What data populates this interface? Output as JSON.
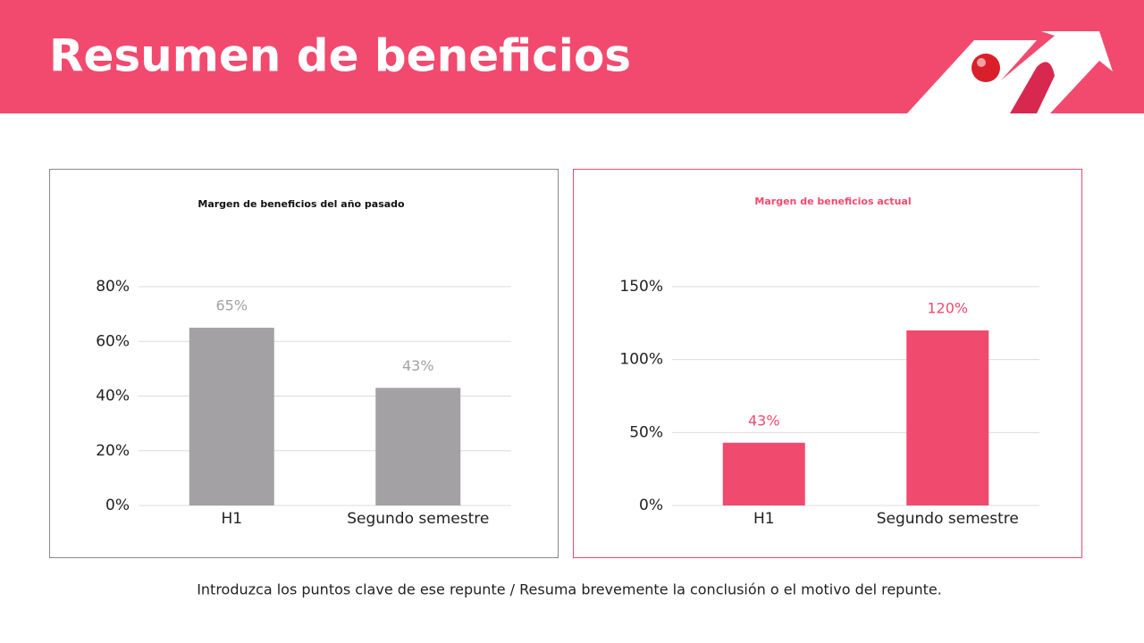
{
  "header": {
    "title": "Resumen de beneficios"
  },
  "chart_data": [
    {
      "type": "bar",
      "title": "Margen de beneficios del año pasado",
      "categories": [
        "H1",
        "Segundo semestre"
      ],
      "values": [
        65,
        43
      ],
      "value_labels": [
        "65%",
        "43%"
      ],
      "color": "#a3a1a4",
      "ylim": [
        0,
        80
      ],
      "yticks": [
        {
          "value": 0,
          "label": "0%"
        },
        {
          "value": 20,
          "label": "20%"
        },
        {
          "value": 40,
          "label": "40%"
        },
        {
          "value": 60,
          "label": "60%"
        },
        {
          "value": 80,
          "label": "80%"
        }
      ],
      "grid": true
    },
    {
      "type": "bar",
      "title": "Margen de beneficios actual",
      "categories": [
        "H1",
        "Segundo semestre"
      ],
      "values": [
        43,
        120
      ],
      "value_labels": [
        "43%",
        "120%"
      ],
      "color": "#f04a6e",
      "ylim": [
        0,
        150
      ],
      "yticks": [
        {
          "value": 0,
          "label": "0%"
        },
        {
          "value": 50,
          "label": "50%"
        },
        {
          "value": 100,
          "label": "100%"
        },
        {
          "value": 150,
          "label": "150%"
        }
      ],
      "grid": true
    }
  ],
  "footer": {
    "text": "Introduzca los puntos clave de ese repunte / Resuma brevemente la conclusión o el motivo del repunte."
  }
}
